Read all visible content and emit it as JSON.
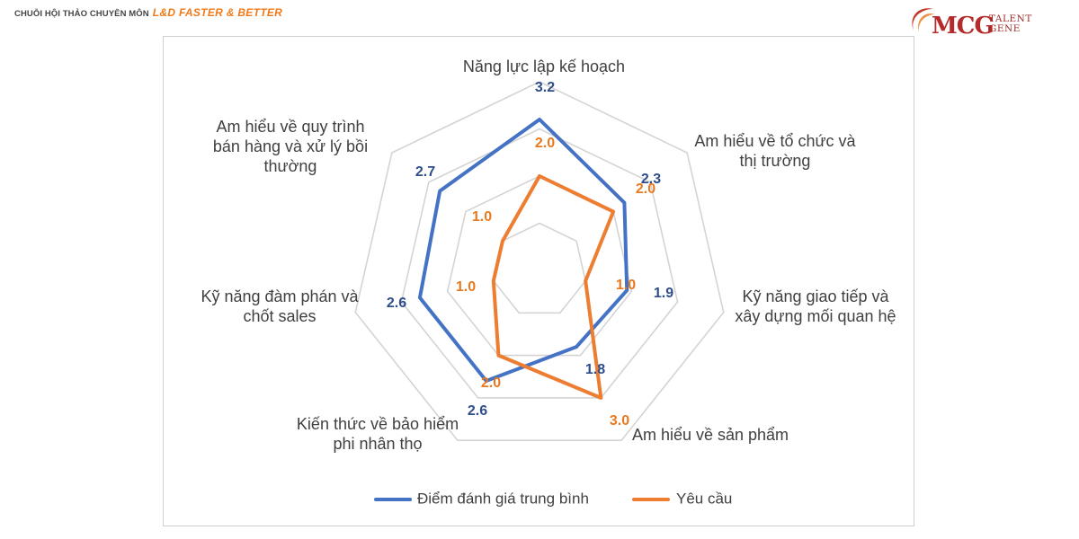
{
  "header": {
    "series_prefix": "CHUỖI HỘI THẢO CHUYÊN MÔN",
    "series_title": "L&D FASTER & BETTER"
  },
  "logo": {
    "brand": "MCG",
    "line1": "TALENT",
    "line2": "GENE",
    "color": "#b52a2a"
  },
  "chart_data": {
    "type": "radar",
    "axes": [
      [
        "Năng lực lập kế hoạch"
      ],
      [
        "Am hiểu về tổ chức và",
        "thị trường"
      ],
      [
        "Kỹ năng giao tiếp và",
        "xây dựng mối quan hệ"
      ],
      [
        "Am hiểu về sản phẩm"
      ],
      [
        "Kiến thức về bảo hiểm",
        "phi nhân thọ"
      ],
      [
        "Kỹ năng đàm phán và",
        "chốt sales"
      ],
      [
        "Am hiểu về quy trình",
        "bán hàng và xử lý bồi",
        "thường"
      ]
    ],
    "series": [
      {
        "name": "Điểm đánh giá trung bình",
        "color": "#4472c4",
        "values": [
          3.2,
          2.3,
          1.9,
          1.8,
          2.6,
          2.6,
          2.7
        ],
        "labels": [
          "3.2",
          "2.3",
          "1.9",
          "1.8",
          "2.6",
          "2.6",
          "2.7"
        ]
      },
      {
        "name": "Yêu cầu",
        "color": "#ed7d31",
        "values": [
          2.0,
          2.0,
          1.0,
          3.0,
          2.0,
          1.0,
          1.0
        ],
        "labels": [
          "2.0",
          "2.0",
          "1.0",
          "3.0",
          "2.0",
          "1.0",
          "1.0"
        ]
      }
    ],
    "rlim": [
      0,
      4
    ],
    "grid": true,
    "legend_position": "bottom"
  }
}
